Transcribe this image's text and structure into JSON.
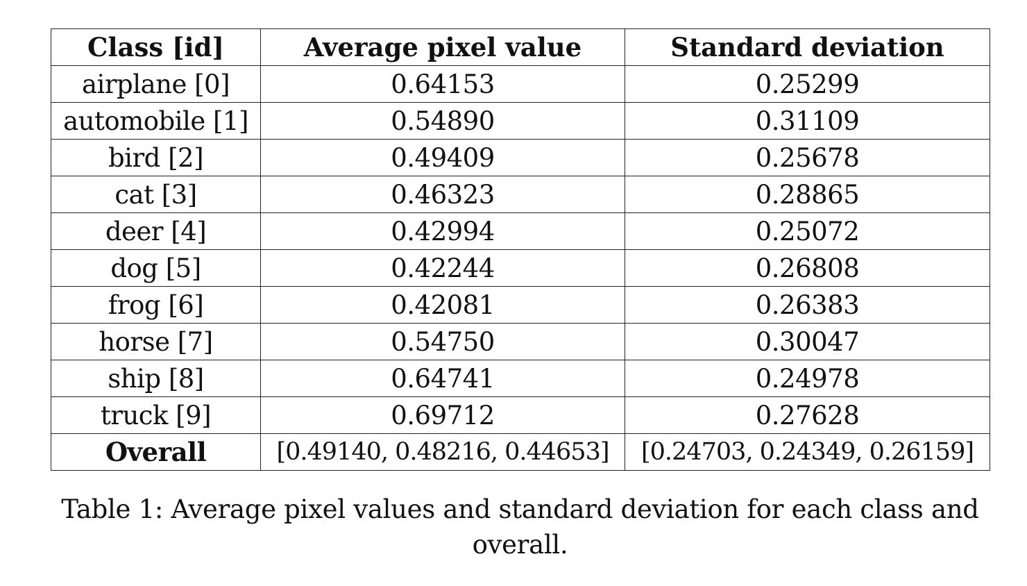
{
  "table": {
    "headers": [
      "Class [id]",
      "Average pixel value",
      "Standard deviation"
    ],
    "rows": [
      {
        "cls": "airplane [0]",
        "mean": "0.64153",
        "std": "0.25299"
      },
      {
        "cls": "automobile [1]",
        "mean": "0.54890",
        "std": "0.31109"
      },
      {
        "cls": "bird [2]",
        "mean": "0.49409",
        "std": "0.25678"
      },
      {
        "cls": "cat [3]",
        "mean": "0.46323",
        "std": "0.28865"
      },
      {
        "cls": "deer [4]",
        "mean": "0.42994",
        "std": "0.25072"
      },
      {
        "cls": "dog [5]",
        "mean": "0.42244",
        "std": "0.26808"
      },
      {
        "cls": "frog [6]",
        "mean": "0.42081",
        "std": "0.26383"
      },
      {
        "cls": "horse [7]",
        "mean": "0.54750",
        "std": "0.30047"
      },
      {
        "cls": "ship [8]",
        "mean": "0.64741",
        "std": "0.24978"
      },
      {
        "cls": "truck [9]",
        "mean": "0.69712",
        "std": "0.27628"
      }
    ],
    "overall": {
      "label": "Overall",
      "mean": "[0.49140, 0.48216, 0.44653]",
      "std": "[0.24703, 0.24349, 0.26159]"
    }
  },
  "caption": {
    "line1": "Table 1: Average pixel values and standard deviation for each class and",
    "line2": "overall."
  }
}
